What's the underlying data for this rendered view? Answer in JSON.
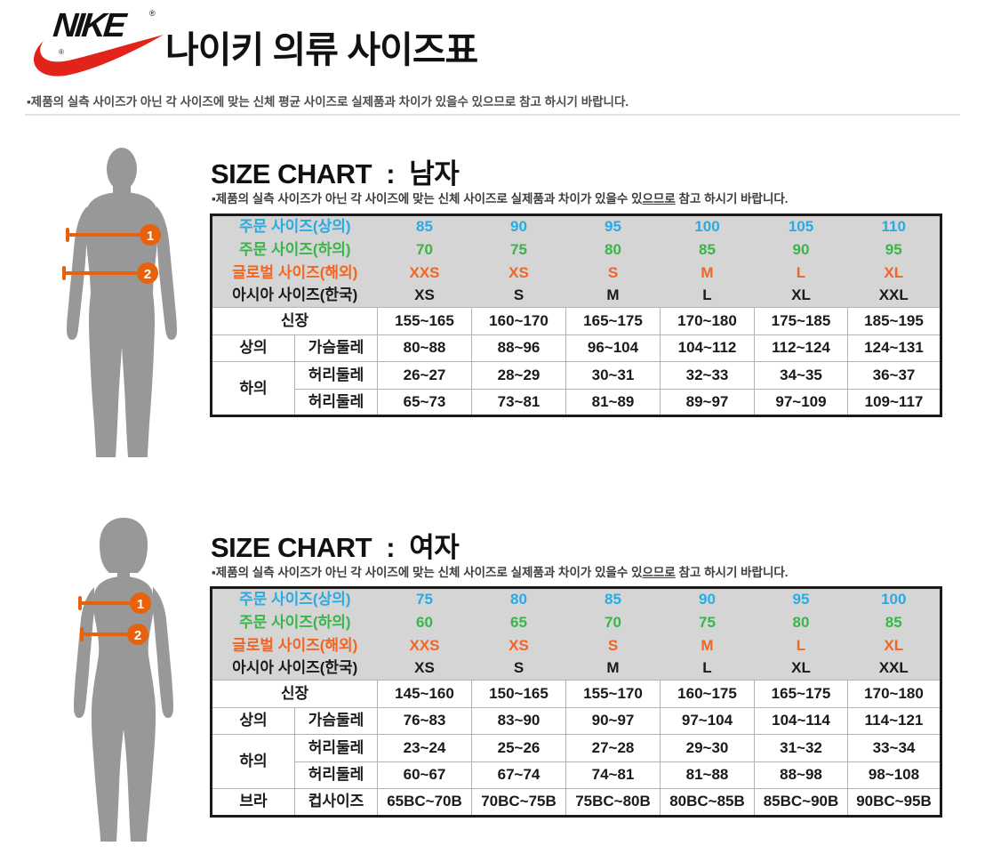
{
  "logo": {
    "wordmark": "NIKE",
    "registered": "®",
    "swoosh_color": "#e2231a"
  },
  "header": {
    "title": "나이키 의류 사이즈표",
    "disclaimer": "▪제품의 실측 사이즈가 아닌 각 사이즈에 맞는 신체 평균 사이즈로 실제품과 차이가 있을수 있으므로 참고 하시기 바랍니다."
  },
  "colors": {
    "order_top": "#29abe2",
    "order_bottom": "#3ab54a",
    "global_size": "#f26522",
    "asia_size": "#1a1a1a",
    "table_header_bg": "#d5d5d5",
    "grid_line": "#b3b3b3",
    "table_border": "#1a1a1a",
    "silhouette": "#989898",
    "measure": "#e8610c"
  },
  "sections": [
    {
      "id": "men",
      "title": "SIZE CHART  :  남자",
      "subtitle_pre": "▪제품의 실측 사이즈가 아닌 각 사이즈에 맞는 신체 사이즈로 실제품과 차이가 있을수 있",
      "subtitle_underline": "으므로",
      "subtitle_post": " 참고 하시기 바랍니다.",
      "figure": {
        "type": "male-silhouette",
        "markers": [
          "1",
          "2"
        ]
      },
      "table": {
        "header_rows": [
          {
            "label": "주문 사이즈(상의)",
            "color": "#29abe2",
            "values": [
              "85",
              "90",
              "95",
              "100",
              "105",
              "110"
            ]
          },
          {
            "label": "주문 사이즈(하의)",
            "color": "#3ab54a",
            "values": [
              "70",
              "75",
              "80",
              "85",
              "90",
              "95"
            ]
          },
          {
            "label": "글로벌 사이즈(해외)",
            "color": "#f26522",
            "values": [
              "XXS",
              "XS",
              "S",
              "M",
              "L",
              "XL"
            ]
          },
          {
            "label": "아시아 사이즈(한국)",
            "color": "#1a1a1a",
            "values": [
              "XS",
              "S",
              "M",
              "L",
              "XL",
              "XXL"
            ]
          }
        ],
        "body_rows": [
          {
            "labels": [
              {
                "text": "신장",
                "colspan": 2
              }
            ],
            "values": [
              "155~165",
              "160~170",
              "165~175",
              "170~180",
              "175~185",
              "185~195"
            ]
          },
          {
            "labels": [
              {
                "text": "상의"
              },
              {
                "text": "가슴둘레"
              }
            ],
            "values": [
              "80~88",
              "88~96",
              "96~104",
              "104~112",
              "112~124",
              "124~131"
            ]
          },
          {
            "labels": [
              {
                "text": "하의",
                "rowspan": 2
              },
              {
                "text": "허리둘레"
              }
            ],
            "values": [
              "26~27",
              "28~29",
              "30~31",
              "32~33",
              "34~35",
              "36~37"
            ]
          },
          {
            "labels": [
              {
                "text": "허리둘레"
              }
            ],
            "values": [
              "65~73",
              "73~81",
              "81~89",
              "89~97",
              "97~109",
              "109~117"
            ]
          }
        ]
      }
    },
    {
      "id": "women",
      "title": "SIZE CHART  :  여자",
      "subtitle_pre": "▪제품의 실측 사이즈가 아닌 각 사이즈에 맞는 신체 사이즈로 실제품과 차이가 있을수 있",
      "subtitle_underline": "으므로",
      "subtitle_post": " 참고 하시기 바랍니다.",
      "figure": {
        "type": "female-silhouette",
        "markers": [
          "1",
          "2"
        ]
      },
      "table": {
        "header_rows": [
          {
            "label": "주문 사이즈(상의)",
            "color": "#29abe2",
            "values": [
              "75",
              "80",
              "85",
              "90",
              "95",
              "100"
            ]
          },
          {
            "label": "주문 사이즈(하의)",
            "color": "#3ab54a",
            "values": [
              "60",
              "65",
              "70",
              "75",
              "80",
              "85"
            ]
          },
          {
            "label": "글로벌 사이즈(해외)",
            "color": "#f26522",
            "values": [
              "XXS",
              "XS",
              "S",
              "M",
              "L",
              "XL"
            ]
          },
          {
            "label": "아시아 사이즈(한국)",
            "color": "#1a1a1a",
            "values": [
              "XS",
              "S",
              "M",
              "L",
              "XL",
              "XXL"
            ]
          }
        ],
        "body_rows": [
          {
            "labels": [
              {
                "text": "신장",
                "colspan": 2
              }
            ],
            "values": [
              "145~160",
              "150~165",
              "155~170",
              "160~175",
              "165~175",
              "170~180"
            ]
          },
          {
            "labels": [
              {
                "text": "상의"
              },
              {
                "text": "가슴둘레"
              }
            ],
            "values": [
              "76~83",
              "83~90",
              "90~97",
              "97~104",
              "104~114",
              "114~121"
            ]
          },
          {
            "labels": [
              {
                "text": "하의",
                "rowspan": 2
              },
              {
                "text": "허리둘레"
              }
            ],
            "values": [
              "23~24",
              "25~26",
              "27~28",
              "29~30",
              "31~32",
              "33~34"
            ]
          },
          {
            "labels": [
              {
                "text": "허리둘레"
              }
            ],
            "values": [
              "60~67",
              "67~74",
              "74~81",
              "81~88",
              "88~98",
              "98~108"
            ]
          },
          {
            "labels": [
              {
                "text": "브라"
              },
              {
                "text": "컵사이즈"
              }
            ],
            "values": [
              "65BC~70B",
              "70BC~75B",
              "75BC~80B",
              "80BC~85B",
              "85BC~90B",
              "90BC~95B"
            ]
          }
        ]
      }
    }
  ]
}
